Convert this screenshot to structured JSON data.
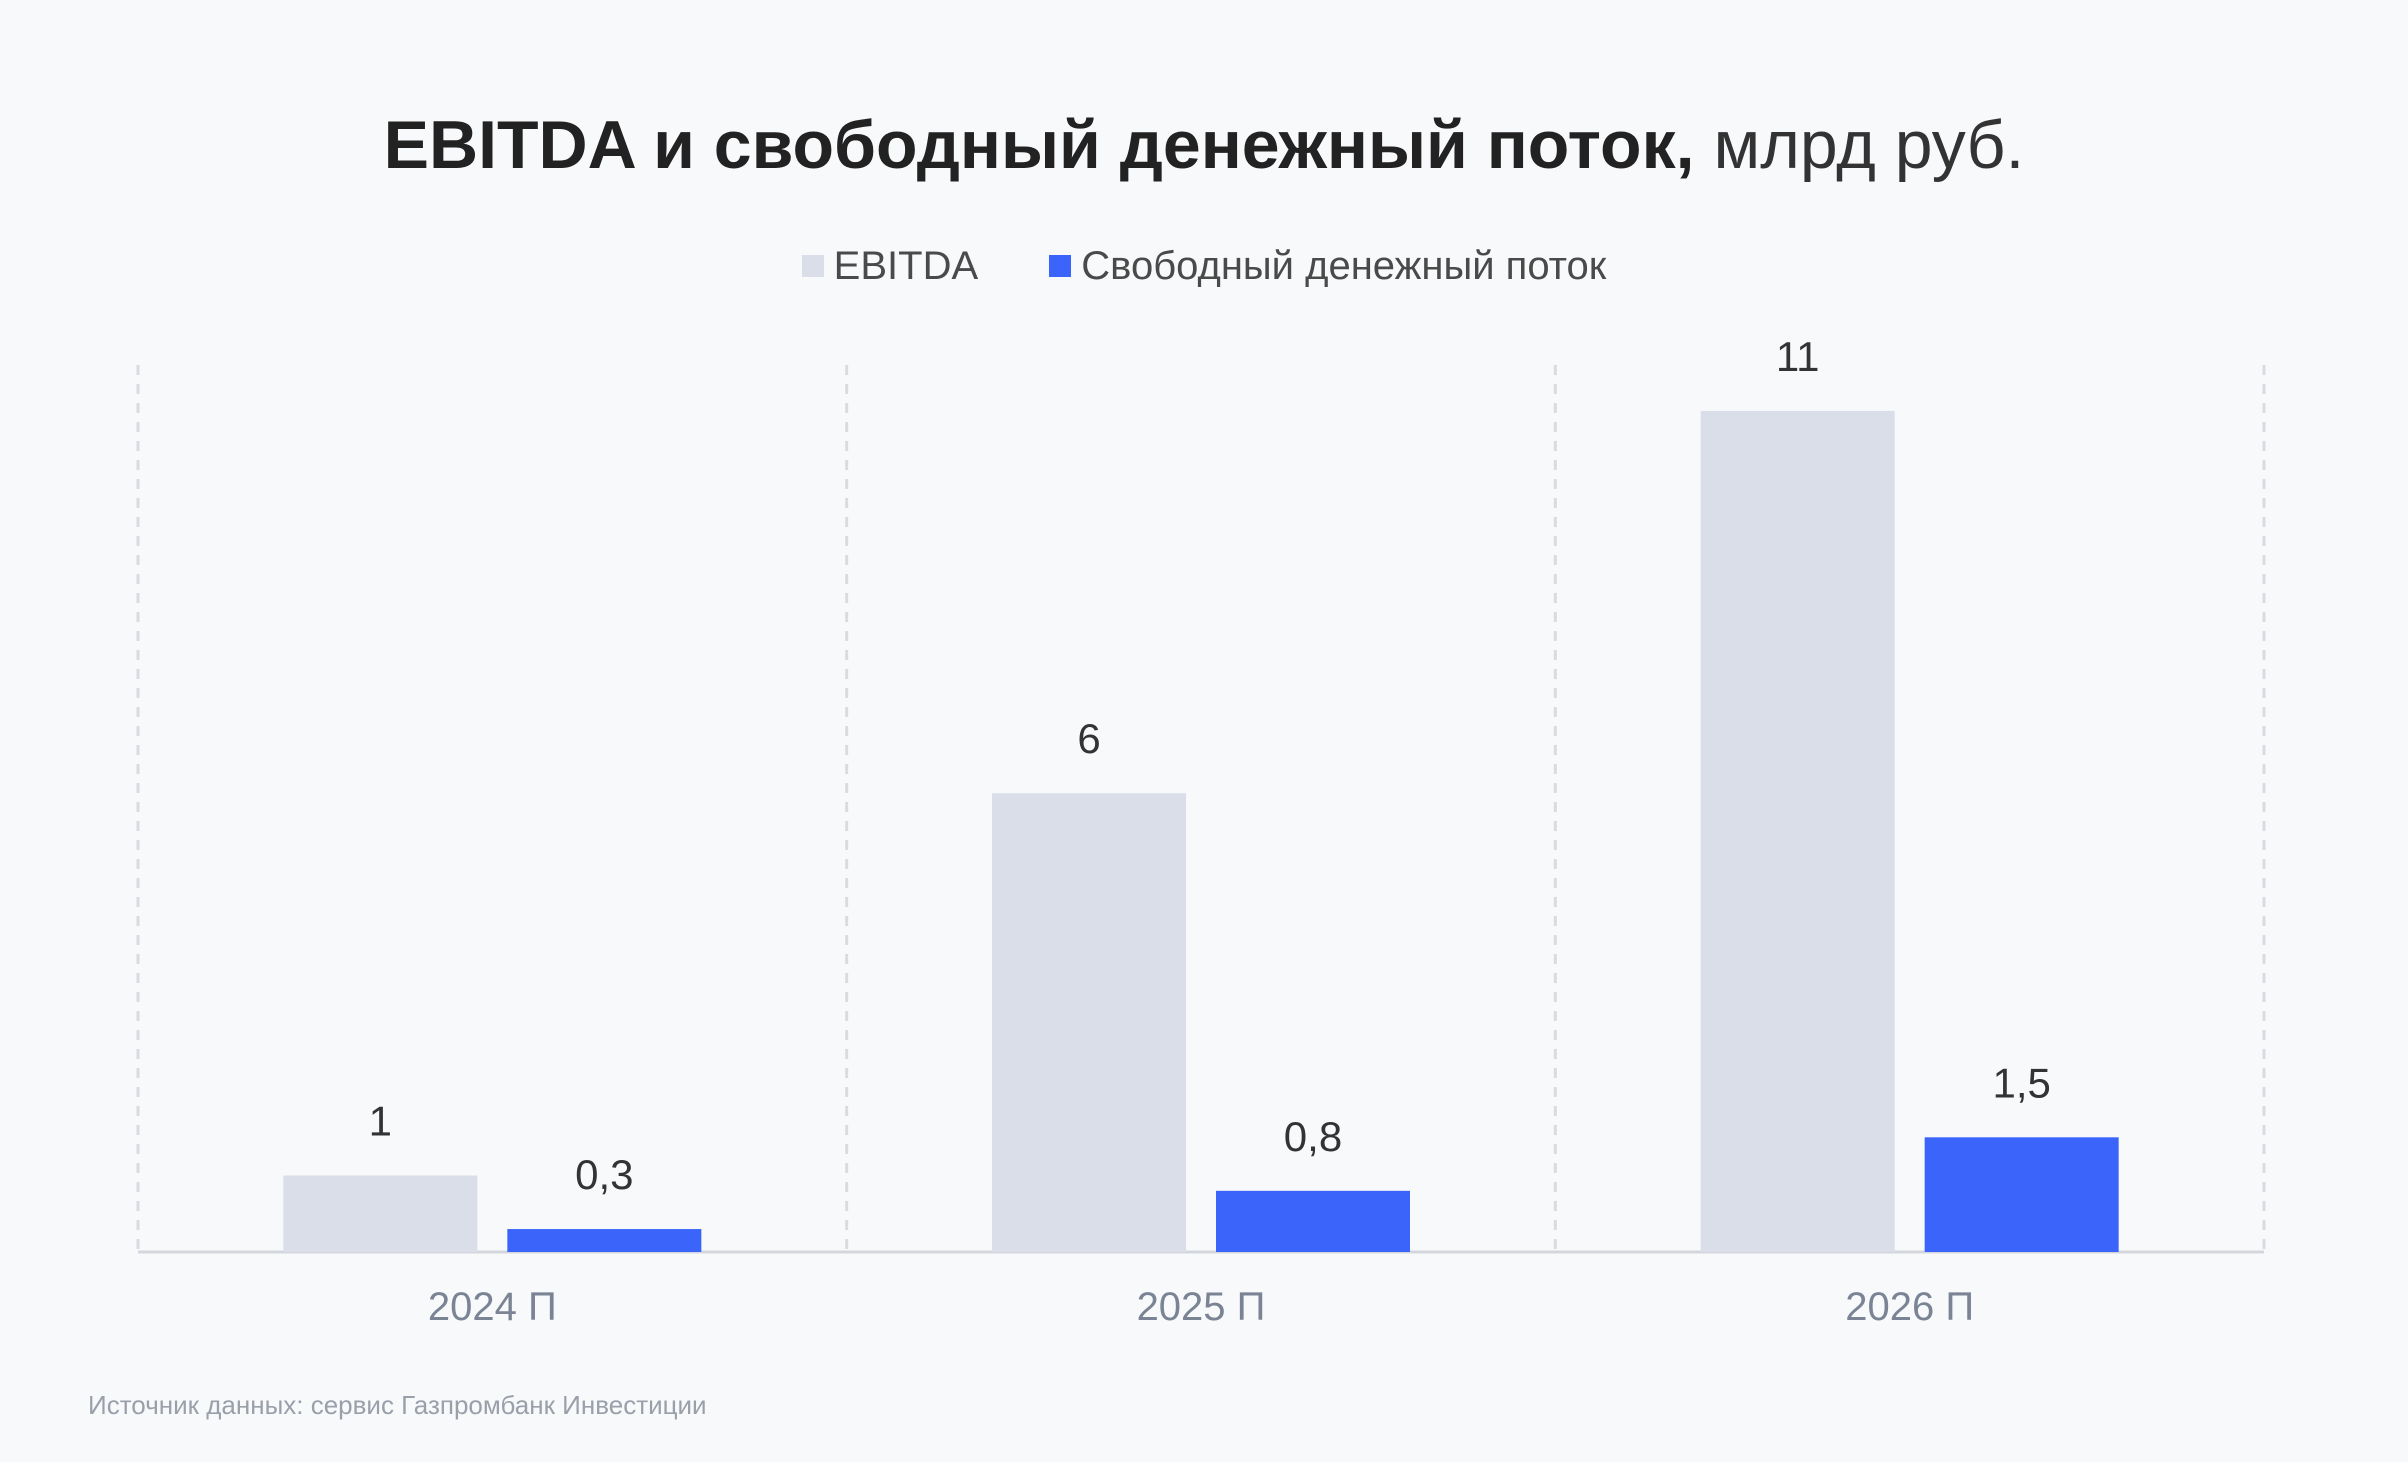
{
  "title": {
    "bold": "EBITDA и свободный денежный поток,",
    "normal": "млрд руб."
  },
  "legend": [
    {
      "label": "EBITDA",
      "color": "#d9dee8"
    },
    {
      "label": "Свободный денежный поток",
      "color": "#3a64fa"
    }
  ],
  "source": "Источник данных: сервис Газпромбанк Инвестиции",
  "chart_data": {
    "type": "bar",
    "title": "EBITDA и свободный денежный поток, млрд руб.",
    "xlabel": "",
    "ylabel": "",
    "categories": [
      "2024 П",
      "2025 П",
      "2026 П"
    ],
    "series": [
      {
        "name": "EBITDA",
        "values": [
          1,
          6,
          11
        ],
        "labels": [
          "1",
          "6",
          "11"
        ],
        "color": "#d9dee8"
      },
      {
        "name": "Свободный денежный поток",
        "values": [
          0.3,
          0.8,
          1.5
        ],
        "labels": [
          "0,3",
          "0,8",
          "1,5"
        ],
        "color": "#3a64fa"
      }
    ],
    "ylim": [
      0,
      11.6
    ],
    "grid": "vertical-dashed",
    "legend": "top-center"
  }
}
